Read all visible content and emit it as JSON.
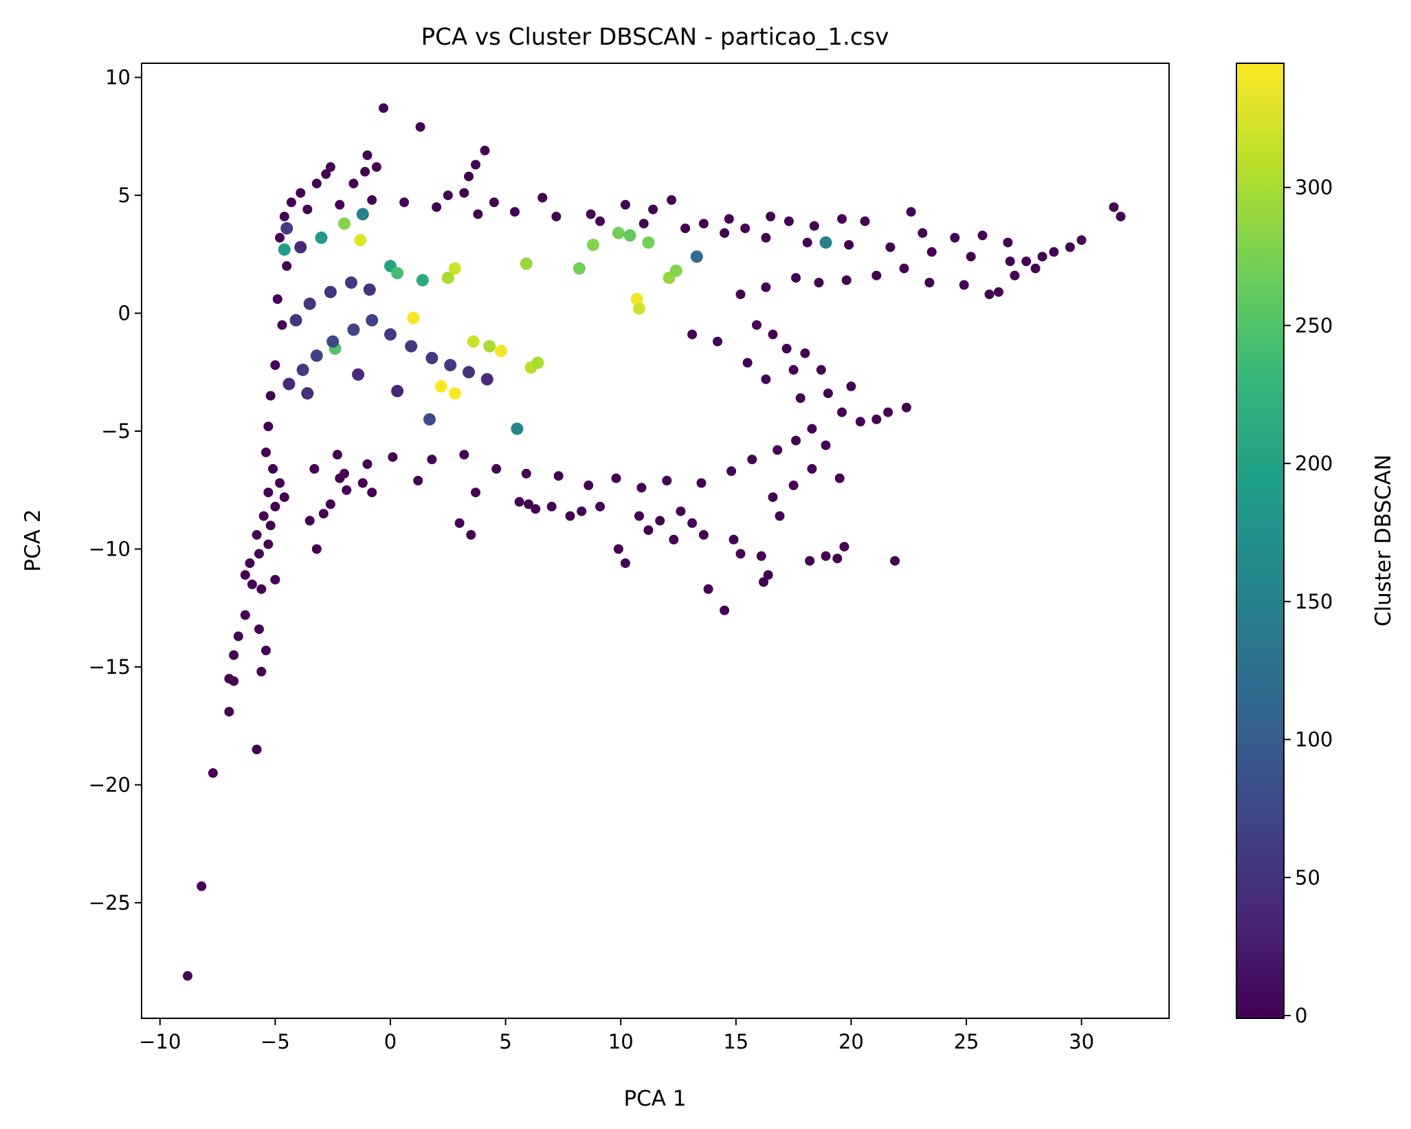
{
  "chart_data": {
    "type": "scatter",
    "title": "PCA vs Cluster DBSCAN - particao_1.csv",
    "xlabel": "PCA 1",
    "ylabel": "PCA 2",
    "xlim": [
      -10.8,
      33.8
    ],
    "ylim": [
      -29.9,
      10.6
    ],
    "xticks": [
      -10,
      -5,
      0,
      5,
      10,
      15,
      20,
      25,
      30
    ],
    "yticks": [
      -25,
      -20,
      -15,
      -10,
      -5,
      0,
      5,
      10
    ],
    "grid": false,
    "colormap": "viridis",
    "colorbar": {
      "label": "Cluster DBSCAN",
      "range": [
        -1,
        345
      ],
      "ticks": [
        0,
        50,
        100,
        150,
        200,
        250,
        300
      ]
    },
    "colors": {
      "noise": "#440154",
      "viridis_stops": [
        "#440154",
        "#482878",
        "#3e4989",
        "#31688e",
        "#26828e",
        "#1f9e89",
        "#35b779",
        "#6ece58",
        "#b5de2b",
        "#fde725"
      ]
    },
    "points": [
      [
        -8.8,
        -28.1,
        -1
      ],
      [
        -8.2,
        -24.3,
        -1
      ],
      [
        -7.7,
        -19.5,
        -1
      ],
      [
        -7.0,
        -16.9,
        -1
      ],
      [
        -5.8,
        -18.5,
        -1
      ],
      [
        -7.0,
        -15.5,
        -1
      ],
      [
        -6.8,
        -15.6,
        -1
      ],
      [
        -6.8,
        -14.5,
        -1
      ],
      [
        -6.6,
        -13.7,
        -1
      ],
      [
        -6.3,
        -12.8,
        -1
      ],
      [
        -5.7,
        -13.4,
        -1
      ],
      [
        -5.6,
        -15.2,
        -1
      ],
      [
        -5.4,
        -14.3,
        -1
      ],
      [
        -6.3,
        -11.1,
        -1
      ],
      [
        -6.0,
        -11.5,
        -1
      ],
      [
        -5.6,
        -11.7,
        -1
      ],
      [
        -5.0,
        -11.3,
        -1
      ],
      [
        -6.1,
        -10.6,
        -1
      ],
      [
        -5.7,
        -10.2,
        -1
      ],
      [
        -5.3,
        -9.8,
        -1
      ],
      [
        -5.8,
        -9.4,
        -1
      ],
      [
        -5.2,
        -9.0,
        -1
      ],
      [
        -5.5,
        -8.6,
        -1
      ],
      [
        -5.0,
        -8.2,
        -1
      ],
      [
        -5.3,
        -7.6,
        -1
      ],
      [
        -4.8,
        -7.2,
        -1
      ],
      [
        -5.1,
        -6.6,
        -1
      ],
      [
        -4.6,
        -7.8,
        -1
      ],
      [
        -3.2,
        -10.0,
        -1
      ],
      [
        -3.5,
        -8.8,
        -1
      ],
      [
        -2.6,
        -8.1,
        -1
      ],
      [
        -2.9,
        -8.5,
        -1
      ],
      [
        -1.9,
        -7.5,
        -1
      ],
      [
        -2.2,
        -7.0,
        -1
      ],
      [
        -1.2,
        -7.2,
        -1
      ],
      [
        -0.8,
        -7.6,
        -1
      ],
      [
        -2.0,
        -6.8,
        -1
      ],
      [
        1.2,
        -7.1,
        -1
      ],
      [
        3.0,
        -8.9,
        -1
      ],
      [
        3.5,
        -9.4,
        -1
      ],
      [
        3.7,
        -7.6,
        -1
      ],
      [
        5.6,
        -8.0,
        -1
      ],
      [
        6.0,
        -8.1,
        -1
      ],
      [
        6.3,
        -8.3,
        -1
      ],
      [
        7.0,
        -8.2,
        -1
      ],
      [
        7.8,
        -8.6,
        -1
      ],
      [
        8.3,
        -8.4,
        -1
      ],
      [
        9.1,
        -8.2,
        -1
      ],
      [
        9.9,
        -10.0,
        -1
      ],
      [
        10.2,
        -10.6,
        -1
      ],
      [
        10.8,
        -8.6,
        -1
      ],
      [
        11.2,
        -9.2,
        -1
      ],
      [
        11.7,
        -8.8,
        -1
      ],
      [
        12.3,
        -9.6,
        -1
      ],
      [
        12.6,
        -8.4,
        -1
      ],
      [
        13.1,
        -8.9,
        -1
      ],
      [
        13.6,
        -9.4,
        -1
      ],
      [
        13.8,
        -11.7,
        -1
      ],
      [
        14.5,
        -12.6,
        -1
      ],
      [
        14.9,
        -9.6,
        -1
      ],
      [
        15.2,
        -10.2,
        -1
      ],
      [
        16.2,
        -11.4,
        -1
      ],
      [
        16.4,
        -11.1,
        -1
      ],
      [
        16.1,
        -10.3,
        -1
      ],
      [
        16.9,
        -8.6,
        -1
      ],
      [
        16.6,
        -7.8,
        -1
      ],
      [
        18.2,
        -10.5,
        -1
      ],
      [
        18.9,
        -10.3,
        -1
      ],
      [
        19.4,
        -10.4,
        -1
      ],
      [
        19.7,
        -9.9,
        -1
      ],
      [
        21.9,
        -10.5,
        -1
      ],
      [
        19.5,
        -7.0,
        -1
      ],
      [
        17.5,
        -7.3,
        -1
      ],
      [
        18.3,
        -6.6,
        -1
      ],
      [
        18.9,
        -5.6,
        -1
      ],
      [
        20.4,
        -4.6,
        -1
      ],
      [
        21.1,
        -4.5,
        -1
      ],
      [
        22.4,
        -4.0,
        -1
      ],
      [
        21.6,
        -4.2,
        -1
      ],
      [
        20.0,
        -3.1,
        -1
      ],
      [
        19.0,
        -3.4,
        -1
      ],
      [
        18.7,
        -2.4,
        -1
      ],
      [
        17.8,
        -3.6,
        -1
      ],
      [
        18.0,
        -1.7,
        -1
      ],
      [
        17.2,
        -1.5,
        -1
      ],
      [
        16.6,
        -0.9,
        -1
      ],
      [
        15.9,
        -0.5,
        -1
      ],
      [
        15.2,
        0.8,
        -1
      ],
      [
        16.3,
        1.1,
        -1
      ],
      [
        17.6,
        1.5,
        -1
      ],
      [
        18.6,
        1.3,
        -1
      ],
      [
        19.8,
        1.4,
        -1
      ],
      [
        21.1,
        1.6,
        -1
      ],
      [
        22.3,
        1.9,
        -1
      ],
      [
        23.4,
        1.3,
        -1
      ],
      [
        24.9,
        1.2,
        -1
      ],
      [
        26.0,
        0.8,
        -1
      ],
      [
        26.4,
        0.9,
        -1
      ],
      [
        27.1,
        1.6,
        -1
      ],
      [
        27.6,
        2.2,
        -1
      ],
      [
        28.3,
        2.4,
        -1
      ],
      [
        28.8,
        2.6,
        -1
      ],
      [
        29.5,
        2.8,
        -1
      ],
      [
        30.0,
        3.1,
        -1
      ],
      [
        31.4,
        4.5,
        -1
      ],
      [
        31.7,
        4.1,
        -1
      ],
      [
        26.8,
        3.0,
        -1
      ],
      [
        25.7,
        3.3,
        -1
      ],
      [
        24.5,
        3.2,
        -1
      ],
      [
        23.1,
        3.4,
        -1
      ],
      [
        22.6,
        4.3,
        -1
      ],
      [
        20.6,
        3.9,
        -1
      ],
      [
        19.6,
        4.0,
        -1
      ],
      [
        18.4,
        3.7,
        -1
      ],
      [
        17.3,
        3.9,
        -1
      ],
      [
        16.5,
        4.1,
        -1
      ],
      [
        15.4,
        3.6,
        -1
      ],
      [
        14.7,
        4.0,
        -1
      ],
      [
        13.6,
        3.8,
        -1
      ],
      [
        12.2,
        4.8,
        -1
      ],
      [
        11.4,
        4.4,
        -1
      ],
      [
        10.2,
        4.6,
        -1
      ],
      [
        8.7,
        4.2,
        -1
      ],
      [
        6.6,
        4.9,
        -1
      ],
      [
        4.5,
        4.7,
        -1
      ],
      [
        4.1,
        6.9,
        -1
      ],
      [
        3.7,
        6.3,
        -1
      ],
      [
        3.4,
        5.8,
        -1
      ],
      [
        3.2,
        5.1,
        -1
      ],
      [
        2.5,
        5.0,
        -1
      ],
      [
        1.3,
        7.9,
        -1
      ],
      [
        -0.3,
        8.7,
        -1
      ],
      [
        -0.6,
        6.2,
        -1
      ],
      [
        -1.0,
        6.7,
        -1
      ],
      [
        -1.1,
        6.0,
        -1
      ],
      [
        -1.6,
        5.5,
        -1
      ],
      [
        -2.6,
        6.2,
        -1
      ],
      [
        -2.8,
        5.9,
        -1
      ],
      [
        -3.2,
        5.5,
        -1
      ],
      [
        -3.9,
        5.1,
        -1
      ],
      [
        -4.3,
        4.7,
        -1
      ],
      [
        -4.6,
        4.1,
        -1
      ],
      [
        -4.8,
        3.2,
        -1
      ],
      [
        -4.5,
        2.0,
        -1
      ],
      [
        -4.9,
        0.6,
        -1
      ],
      [
        -4.7,
        -0.5,
        -1
      ],
      [
        -5.0,
        -2.2,
        -1
      ],
      [
        -5.2,
        -3.5,
        -1
      ],
      [
        -5.3,
        -4.8,
        -1
      ],
      [
        -5.4,
        -5.9,
        -1
      ],
      [
        -3.3,
        -6.6,
        -1
      ],
      [
        -2.3,
        -6.0,
        -1
      ],
      [
        -1.0,
        -6.4,
        -1
      ],
      [
        0.1,
        -6.1,
        -1
      ],
      [
        1.8,
        -6.2,
        -1
      ],
      [
        3.2,
        -6.0,
        -1
      ],
      [
        4.6,
        -6.6,
        -1
      ],
      [
        5.9,
        -6.8,
        -1
      ],
      [
        7.3,
        -6.9,
        -1
      ],
      [
        8.6,
        -7.3,
        -1
      ],
      [
        9.8,
        -7.0,
        -1
      ],
      [
        10.9,
        -7.4,
        -1
      ],
      [
        12.0,
        -7.1,
        -1
      ],
      [
        13.5,
        -7.2,
        -1
      ],
      [
        14.8,
        -6.7,
        -1
      ],
      [
        15.7,
        -6.2,
        -1
      ],
      [
        16.8,
        -5.8,
        -1
      ],
      [
        17.6,
        -5.4,
        -1
      ],
      [
        18.3,
        -4.9,
        -1
      ],
      [
        19.6,
        -4.2,
        -1
      ],
      [
        17.5,
        -2.4,
        -1
      ],
      [
        16.3,
        -2.8,
        -1
      ],
      [
        15.5,
        -2.1,
        -1
      ],
      [
        14.2,
        -1.2,
        -1
      ],
      [
        13.1,
        -0.9,
        -1
      ],
      [
        -3.6,
        4.4,
        -1
      ],
      [
        -2.2,
        4.6,
        -1
      ],
      [
        -0.8,
        4.8,
        -1
      ],
      [
        0.6,
        4.7,
        -1
      ],
      [
        2.0,
        4.5,
        -1
      ],
      [
        3.8,
        4.2,
        -1
      ],
      [
        5.4,
        4.3,
        -1
      ],
      [
        7.2,
        4.1,
        -1
      ],
      [
        9.1,
        3.9,
        -1
      ],
      [
        11.0,
        3.8,
        -1
      ],
      [
        12.8,
        3.6,
        -1
      ],
      [
        14.5,
        3.4,
        -1
      ],
      [
        16.3,
        3.2,
        -1
      ],
      [
        18.1,
        3.0,
        -1
      ],
      [
        19.9,
        2.9,
        -1
      ],
      [
        21.7,
        2.8,
        -1
      ],
      [
        23.5,
        2.6,
        -1
      ],
      [
        25.2,
        2.4,
        -1
      ],
      [
        26.9,
        2.2,
        -1
      ],
      [
        28.0,
        1.9,
        -1
      ],
      [
        -1.2,
        4.2,
        150
      ],
      [
        -4.5,
        3.6,
        60
      ],
      [
        -3.9,
        2.8,
        40
      ],
      [
        -3.0,
        3.2,
        180
      ],
      [
        -2.0,
        3.8,
        280
      ],
      [
        -1.3,
        3.1,
        330
      ],
      [
        0.0,
        2.0,
        200
      ],
      [
        0.3,
        1.7,
        240
      ],
      [
        1.4,
        1.4,
        210
      ],
      [
        2.5,
        1.5,
        300
      ],
      [
        2.8,
        1.9,
        320
      ],
      [
        5.9,
        2.1,
        290
      ],
      [
        8.2,
        1.9,
        270
      ],
      [
        8.8,
        2.9,
        280
      ],
      [
        9.9,
        3.4,
        270
      ],
      [
        10.4,
        3.3,
        260
      ],
      [
        11.2,
        3.0,
        270
      ],
      [
        12.1,
        1.5,
        290
      ],
      [
        12.4,
        1.8,
        280
      ],
      [
        10.7,
        0.6,
        340
      ],
      [
        10.8,
        0.2,
        320
      ],
      [
        3.6,
        -1.2,
        320
      ],
      [
        4.3,
        -1.4,
        300
      ],
      [
        4.8,
        -1.6,
        340
      ],
      [
        6.1,
        -2.3,
        310
      ],
      [
        6.4,
        -2.1,
        300
      ],
      [
        -2.4,
        -1.5,
        250
      ],
      [
        2.2,
        -3.1,
        345
      ],
      [
        2.8,
        -3.4,
        345
      ],
      [
        1.0,
        -0.2,
        340
      ],
      [
        -3.8,
        -2.4,
        60
      ],
      [
        -3.2,
        -1.8,
        70
      ],
      [
        -2.5,
        -1.2,
        75
      ],
      [
        -1.6,
        -0.7,
        70
      ],
      [
        -0.8,
        -0.3,
        65
      ],
      [
        0.0,
        -0.9,
        60
      ],
      [
        0.9,
        -1.4,
        55
      ],
      [
        1.8,
        -1.9,
        55
      ],
      [
        2.6,
        -2.2,
        60
      ],
      [
        3.4,
        -2.5,
        50
      ],
      [
        4.2,
        -2.8,
        45
      ],
      [
        -4.1,
        -0.3,
        55
      ],
      [
        -3.5,
        0.4,
        50
      ],
      [
        -2.6,
        0.9,
        55
      ],
      [
        -1.7,
        1.3,
        60
      ],
      [
        -0.9,
        1.0,
        50
      ],
      [
        -4.4,
        -3.0,
        40
      ],
      [
        -3.6,
        -3.4,
        45
      ],
      [
        -1.4,
        -2.6,
        40
      ],
      [
        0.3,
        -3.3,
        35
      ],
      [
        18.9,
        3.0,
        150
      ],
      [
        13.3,
        2.4,
        120
      ],
      [
        -4.6,
        2.7,
        190
      ],
      [
        1.7,
        -4.5,
        80
      ],
      [
        5.5,
        -4.9,
        160
      ]
    ]
  }
}
